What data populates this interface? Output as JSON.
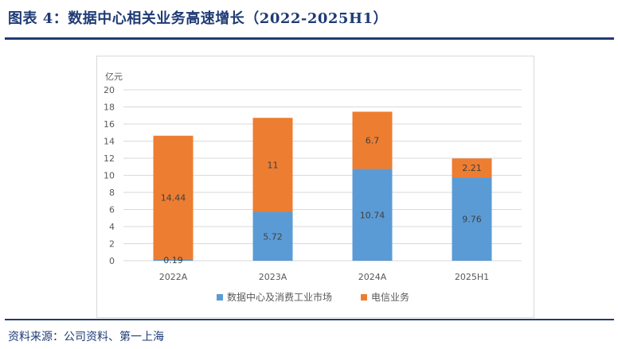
{
  "header": {
    "title": "图表 4：数据中心相关业务高速增长（2022-2025H1）"
  },
  "footer": {
    "source": "资料来源：公司资料、第一上海"
  },
  "colors": {
    "series_blue": "#5b9bd5",
    "series_orange": "#ed7d31",
    "title_blue": "#1f3b75",
    "grid": "#d9d9d9",
    "text": "#595959"
  },
  "chart_data": {
    "type": "bar",
    "stacked": true,
    "unit_label": "亿元",
    "categories": [
      "2022A",
      "2023A",
      "2024A",
      "2025H1"
    ],
    "series": [
      {
        "name": "数据中心及消费工业市场",
        "values": [
          0.19,
          5.72,
          10.74,
          9.76
        ],
        "labels": [
          "0.19",
          "5.72",
          "10.74",
          "9.76"
        ]
      },
      {
        "name": "电信业务",
        "values": [
          14.44,
          11,
          6.7,
          2.21
        ],
        "labels": [
          "14.44",
          "11",
          "6.7",
          "2.21"
        ]
      }
    ],
    "ylim": [
      0,
      20
    ],
    "yticks": [
      0,
      2,
      4,
      6,
      8,
      10,
      12,
      14,
      16,
      18,
      20
    ],
    "grid": true,
    "legend_position": "bottom"
  }
}
